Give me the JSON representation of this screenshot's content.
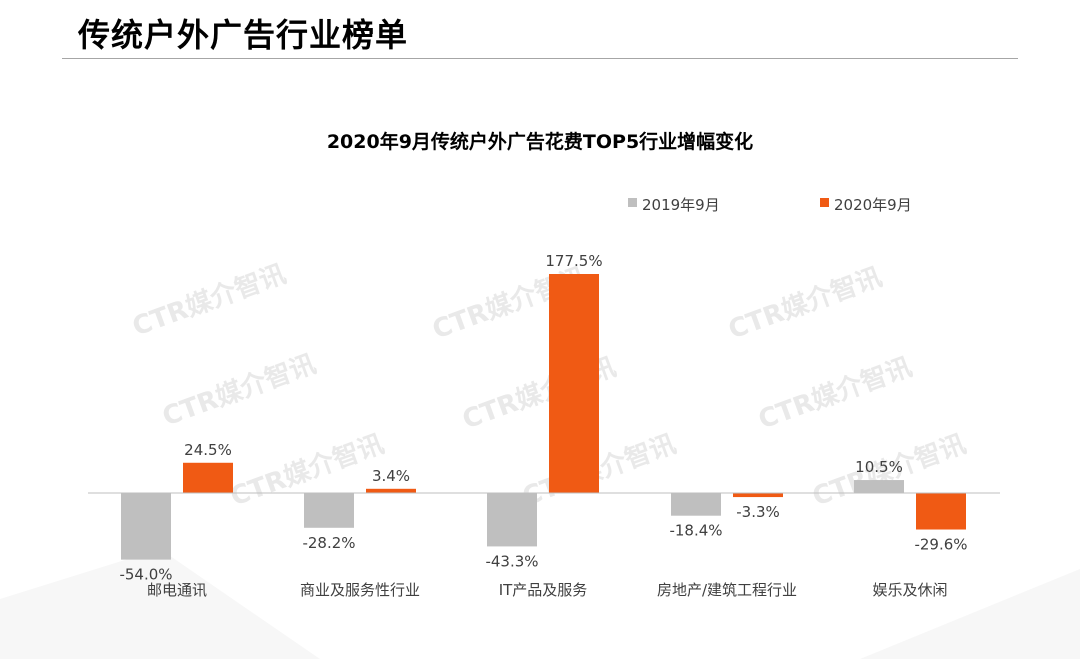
{
  "header": {
    "title": "传统户外广告行业榜单"
  },
  "watermark": "CTR媒介智讯",
  "colors": {
    "series_2019": "#bfbfbf",
    "series_2020": "#f05a14",
    "axis": "#bfbfbf"
  },
  "chart_data": {
    "type": "bar",
    "title": "2020年9月传统户外广告花费TOP5行业增幅变化",
    "categories": [
      "邮电通讯",
      "商业及服务性行业",
      "IT产品及服务",
      "房地产/建筑工程行业",
      "娱乐及休闲"
    ],
    "series": [
      {
        "name": "2019年9月",
        "values": [
          -54.0,
          -28.2,
          -43.3,
          -18.4,
          10.5
        ],
        "labels": [
          "-54.0%",
          "-28.2%",
          "-43.3%",
          "-18.4%",
          "10.5%"
        ]
      },
      {
        "name": "2020年9月",
        "values": [
          24.5,
          3.4,
          177.5,
          -3.3,
          -29.6
        ],
        "labels": [
          "24.5%",
          "3.4%",
          "177.5%",
          "-3.3%",
          "-29.6%"
        ]
      }
    ],
    "legend_position": "top-right",
    "grid": false,
    "unit": "%"
  }
}
